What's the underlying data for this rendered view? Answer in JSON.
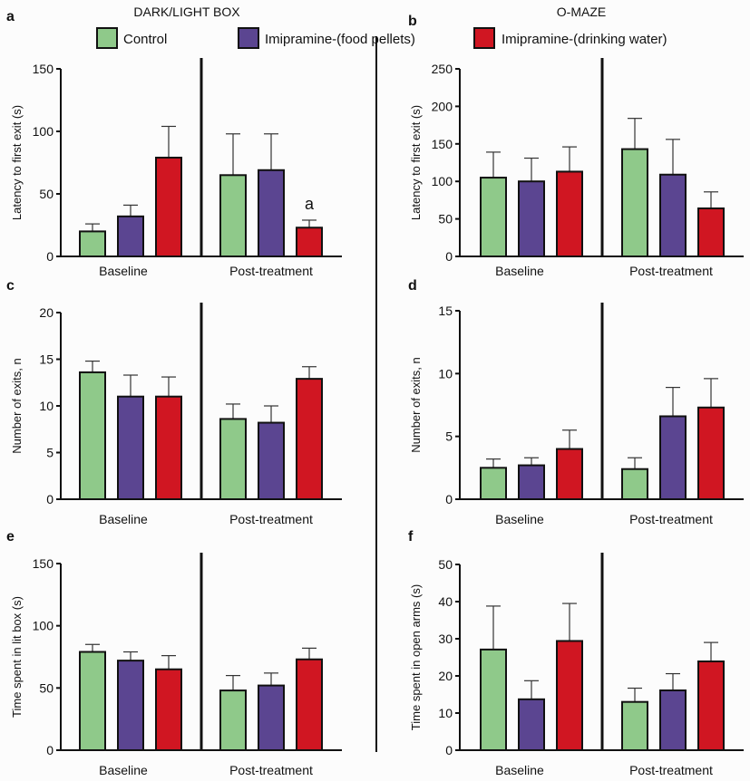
{
  "titles": {
    "left": "DARK/LIGHT BOX",
    "right": "O-MAZE"
  },
  "legend": [
    {
      "label": "Control",
      "color": "#8fc98a"
    },
    {
      "label": "Imipramine-(food pellets)",
      "color": "#5b4591"
    },
    {
      "label": "Imipramine-(drinking water)",
      "color": "#d01622"
    }
  ],
  "chart_data": [
    {
      "panel": "a",
      "type": "bar",
      "title": "",
      "xlabel": "",
      "ylabel": "Latency to first exit (s)",
      "ylim": [
        0,
        150
      ],
      "yticks": [
        0,
        50,
        100,
        150
      ],
      "categories": [
        "Baseline",
        "Post-treatment"
      ],
      "series": [
        {
          "name": "Control",
          "values": [
            20,
            65
          ],
          "errors": [
            6,
            33
          ]
        },
        {
          "name": "Imipramine-(food pellets)",
          "values": [
            32,
            69
          ],
          "errors": [
            9,
            29
          ]
        },
        {
          "name": "Imipramine-(drinking water)",
          "values": [
            79,
            23
          ],
          "errors": [
            25,
            6
          ]
        }
      ],
      "annotations": [
        {
          "text": "a",
          "category": "Post-treatment",
          "series": "Imipramine-(drinking water)"
        }
      ]
    },
    {
      "panel": "b",
      "type": "bar",
      "title": "",
      "xlabel": "",
      "ylabel": "Latency to first exit (s)",
      "ylim": [
        0,
        250
      ],
      "yticks": [
        0,
        50,
        100,
        150,
        200,
        250
      ],
      "categories": [
        "Baseline",
        "Post-treatment"
      ],
      "series": [
        {
          "name": "Control",
          "values": [
            105,
            143
          ],
          "errors": [
            34,
            41
          ]
        },
        {
          "name": "Imipramine-(food pellets)",
          "values": [
            100,
            109
          ],
          "errors": [
            31,
            47
          ]
        },
        {
          "name": "Imipramine-(drinking water)",
          "values": [
            113,
            64
          ],
          "errors": [
            33,
            22
          ]
        }
      ],
      "annotations": []
    },
    {
      "panel": "c",
      "type": "bar",
      "title": "",
      "xlabel": "",
      "ylabel": "Number of exits, n",
      "ylim": [
        0,
        20
      ],
      "yticks": [
        0,
        5,
        10,
        15,
        20
      ],
      "categories": [
        "Baseline",
        "Post-treatment"
      ],
      "series": [
        {
          "name": "Control",
          "values": [
            13.6,
            8.6
          ],
          "errors": [
            1.2,
            1.6
          ]
        },
        {
          "name": "Imipramine-(food pellets)",
          "values": [
            11.0,
            8.2
          ],
          "errors": [
            2.3,
            1.8
          ]
        },
        {
          "name": "Imipramine-(drinking water)",
          "values": [
            11.0,
            12.9
          ],
          "errors": [
            2.1,
            1.3
          ]
        }
      ],
      "annotations": []
    },
    {
      "panel": "d",
      "type": "bar",
      "title": "",
      "xlabel": "",
      "ylabel": "Number of exits, n",
      "ylim": [
        0,
        15
      ],
      "yticks": [
        0,
        5,
        10,
        15
      ],
      "categories": [
        "Baseline",
        "Post-treatment"
      ],
      "series": [
        {
          "name": "Control",
          "values": [
            2.5,
            2.4
          ],
          "errors": [
            0.7,
            0.9
          ]
        },
        {
          "name": "Imipramine-(food pellets)",
          "values": [
            2.7,
            6.6
          ],
          "errors": [
            0.6,
            2.3
          ]
        },
        {
          "name": "Imipramine-(drinking water)",
          "values": [
            4.0,
            7.3
          ],
          "errors": [
            1.5,
            2.3
          ]
        }
      ],
      "annotations": []
    },
    {
      "panel": "e",
      "type": "bar",
      "title": "",
      "xlabel": "",
      "ylabel": "Time spent in lit box (s)",
      "ylim": [
        0,
        150
      ],
      "yticks": [
        0,
        50,
        100,
        150
      ],
      "categories": [
        "Baseline",
        "Post-treatment"
      ],
      "series": [
        {
          "name": "Control",
          "values": [
            79,
            48
          ],
          "errors": [
            6,
            12
          ]
        },
        {
          "name": "Imipramine-(food pellets)",
          "values": [
            72,
            52
          ],
          "errors": [
            7,
            10
          ]
        },
        {
          "name": "Imipramine-(drinking water)",
          "values": [
            65,
            73
          ],
          "errors": [
            11,
            9
          ]
        }
      ],
      "annotations": []
    },
    {
      "panel": "f",
      "type": "bar",
      "title": "",
      "xlabel": "",
      "ylabel": "Time spent in open arms (s)",
      "ylim": [
        0,
        50
      ],
      "yticks": [
        0,
        10,
        20,
        30,
        40,
        50
      ],
      "categories": [
        "Baseline",
        "Post-treatment"
      ],
      "series": [
        {
          "name": "Control",
          "values": [
            27.1,
            13.0
          ],
          "errors": [
            11.7,
            3.7
          ]
        },
        {
          "name": "Imipramine-(food pellets)",
          "values": [
            13.7,
            16.1
          ],
          "errors": [
            5.0,
            4.5
          ]
        },
        {
          "name": "Imipramine-(drinking water)",
          "values": [
            29.4,
            23.9
          ],
          "errors": [
            10.1,
            5.1
          ]
        }
      ],
      "annotations": []
    }
  ]
}
